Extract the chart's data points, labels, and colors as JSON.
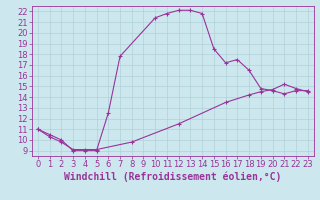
{
  "xlabel": "Windchill (Refroidissement éolien,°C)",
  "bg_color": "#cce8ee",
  "line_color": "#993399",
  "xlim": [
    -0.5,
    23.5
  ],
  "ylim": [
    8.5,
    22.5
  ],
  "yticks": [
    9,
    10,
    11,
    12,
    13,
    14,
    15,
    16,
    17,
    18,
    19,
    20,
    21,
    22
  ],
  "xticks": [
    0,
    1,
    2,
    3,
    4,
    5,
    6,
    7,
    8,
    9,
    10,
    11,
    12,
    13,
    14,
    15,
    16,
    17,
    18,
    19,
    20,
    21,
    22,
    23
  ],
  "curve1_x": [
    0,
    1,
    2,
    3,
    4,
    5,
    6,
    7,
    10,
    11,
    12,
    13,
    14,
    15,
    16,
    17,
    18,
    19,
    20,
    21,
    22,
    23
  ],
  "curve1_y": [
    11.0,
    10.5,
    10.0,
    9.0,
    9.0,
    9.0,
    12.5,
    17.8,
    21.4,
    21.8,
    22.1,
    22.1,
    21.8,
    18.5,
    17.2,
    17.5,
    16.5,
    14.8,
    14.6,
    14.3,
    14.6,
    14.6
  ],
  "curve2_x": [
    0,
    1,
    2,
    3,
    4,
    5,
    8,
    12,
    16,
    18,
    19,
    20,
    21,
    22,
    23
  ],
  "curve2_y": [
    11.0,
    10.3,
    9.8,
    9.1,
    9.1,
    9.1,
    9.8,
    11.5,
    13.5,
    14.2,
    14.5,
    14.7,
    15.2,
    14.8,
    14.5
  ],
  "grid_color": "#b0d0d8",
  "tick_label_size": 6,
  "xlabel_size": 7,
  "marker": "+"
}
